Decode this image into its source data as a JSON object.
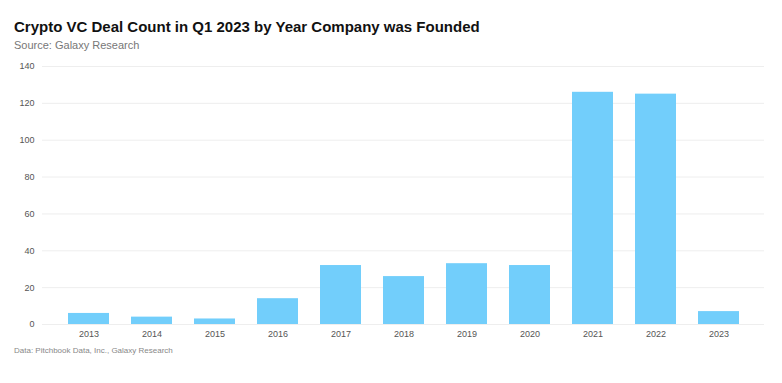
{
  "chart_data": {
    "type": "bar",
    "title": "Crypto VC Deal Count in Q1 2023 by Year Company was Founded",
    "subtitle": "Source: Galaxy Research",
    "caption": "Data: Pitchbook Data, Inc., Galaxy Research",
    "categories": [
      "2013",
      "2014",
      "2015",
      "2016",
      "2017",
      "2018",
      "2019",
      "2020",
      "2021",
      "2022",
      "2023"
    ],
    "values": [
      6,
      4,
      3,
      14,
      32,
      26,
      33,
      32,
      126,
      125,
      7
    ],
    "color": "#72cefb",
    "ylim": [
      0,
      140
    ],
    "yticks": [
      0,
      20,
      40,
      60,
      80,
      100,
      120,
      140
    ],
    "grid": true
  }
}
